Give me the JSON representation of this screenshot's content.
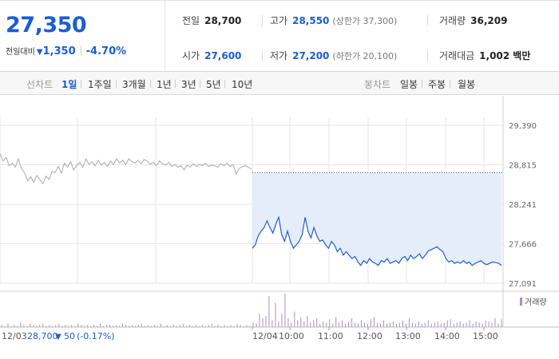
{
  "quote": {
    "price": "27,350",
    "change_label": "전일대비",
    "change_icon": "down-triangle-icon",
    "change_arrow": "▼",
    "change_value": "1,350",
    "change_pct": "-4.70%",
    "stats": {
      "prev_close": {
        "label": "전일",
        "value": "28,700"
      },
      "high": {
        "label": "고가",
        "value": "28,550",
        "sub": "(상한가 37,300)"
      },
      "volume": {
        "label": "거래량",
        "value": "36,209"
      },
      "open": {
        "label": "시가",
        "value": "27,600"
      },
      "low": {
        "label": "저가",
        "value": "27,200",
        "sub": "(하한가 20,100)"
      },
      "amount": {
        "label": "거래대금",
        "value": "1,002 백만"
      }
    }
  },
  "periodbar": {
    "line_label": "선차트",
    "line_options": [
      "1일",
      "1주일",
      "3개월",
      "1년",
      "3년",
      "5년",
      "10년"
    ],
    "line_active": "1일",
    "candle_label": "봉차트",
    "candle_options": [
      "일봉",
      "주봉",
      "월봉"
    ]
  },
  "colors": {
    "up_accent": "#1a5dd6",
    "line": "#1d5fd4",
    "area_fill": "#e5ecfa",
    "volume_bar": "#a98fc7",
    "grid": "#e6e6e6"
  },
  "chart_data": {
    "type": "line",
    "title": "",
    "ylabel": "",
    "xlabel": "",
    "ylim": [
      27091,
      29390
    ],
    "y_ticks": [
      "29,390",
      "28,815",
      "28,241",
      "27,666",
      "27,091"
    ],
    "y_tick_values": [
      29390,
      28815,
      28241,
      27666,
      27091
    ],
    "x_tick_labels": [
      "12/03",
      "12/04",
      "10:00",
      "11:00",
      "12:00",
      "13:00",
      "14:00",
      "15:00"
    ],
    "reference": {
      "label": "전일",
      "value": 28700
    },
    "series": [
      {
        "name": "12/03",
        "color": "#aaaaaa",
        "values": [
          28980,
          28870,
          28920,
          28800,
          28840,
          28780,
          28900,
          28760,
          28700,
          28580,
          28640,
          28560,
          28660,
          28600,
          28540,
          28650,
          28600,
          28720,
          28700,
          28790,
          28690,
          28840,
          28780,
          28860,
          28740,
          28800,
          28850,
          28780,
          28900,
          28820,
          28860,
          28800,
          28880,
          28810,
          28850,
          28790,
          28870,
          28820,
          28900,
          28840,
          28880,
          28820,
          28900,
          28860,
          28840,
          28880,
          28830,
          28890,
          28870,
          28820,
          28850,
          28800,
          28870,
          28830,
          28810,
          28850,
          28790,
          28820,
          28780,
          28800,
          28740,
          28810,
          28780,
          28830,
          28790,
          28820,
          28800,
          28840,
          28790,
          28810,
          28800,
          28780,
          28830,
          28800,
          28840,
          28790,
          28820,
          28680,
          28760,
          28790,
          28800,
          28780,
          28750
        ]
      },
      {
        "name": "12/04",
        "color": "#1d5fd4",
        "values": [
          27600,
          27650,
          27780,
          27850,
          27900,
          28000,
          27900,
          27820,
          27950,
          28050,
          27800,
          27700,
          27850,
          27700,
          27600,
          27650,
          27700,
          27800,
          28050,
          27850,
          27750,
          27900,
          27780,
          27700,
          27720,
          27650,
          27600,
          27700,
          27650,
          27550,
          27600,
          27500,
          27550,
          27500,
          27450,
          27480,
          27400,
          27350,
          27420,
          27380,
          27450,
          27400,
          27380,
          27350,
          27420,
          27400,
          27450,
          27380,
          27400,
          27420,
          27380,
          27450,
          27480,
          27420,
          27500,
          27450,
          27480,
          27520,
          27450,
          27500,
          27560,
          27580,
          27600,
          27620,
          27580,
          27550,
          27450,
          27400,
          27420,
          27380,
          27400,
          27380,
          27420,
          27380,
          27400,
          27350,
          27380,
          27400,
          27420,
          27380,
          27360,
          27380,
          27400,
          27390,
          27380,
          27350
        ]
      }
    ],
    "volume": {
      "label": "거래량",
      "legend_icon": "volume-legend-swatch",
      "values": [
        2,
        1,
        3,
        1,
        2,
        1,
        4,
        2,
        1,
        3,
        2,
        1,
        2,
        3,
        1,
        2,
        1,
        2,
        3,
        1,
        2,
        1,
        2,
        1,
        3,
        2,
        1,
        2,
        1,
        2,
        1,
        3,
        1,
        2,
        2,
        1,
        2,
        1,
        3,
        2,
        1,
        2,
        1,
        2,
        3,
        1,
        2,
        1,
        2,
        1,
        3,
        1,
        2,
        1,
        2,
        1,
        2,
        3,
        1,
        2,
        1,
        2,
        1,
        2,
        1,
        2,
        3,
        1,
        2,
        1,
        2,
        1,
        2,
        1,
        3,
        2,
        1,
        2,
        1,
        4,
        3,
        12,
        8,
        10,
        28,
        6,
        22,
        5,
        12,
        30,
        8,
        4,
        14,
        6,
        9,
        5,
        10,
        4,
        6,
        8,
        3,
        5,
        4,
        7,
        3,
        9,
        4,
        6,
        3,
        5,
        8,
        4,
        3,
        6,
        4,
        3,
        7,
        9,
        4,
        3,
        6,
        3,
        4,
        5,
        3,
        4,
        6,
        3,
        8,
        4,
        3,
        5,
        3,
        4,
        6,
        3,
        4,
        5,
        3,
        4,
        6,
        7,
        3,
        4,
        5,
        3,
        4,
        6,
        3,
        5,
        4,
        3,
        6,
        5,
        4,
        8,
        3,
        7
      ]
    },
    "footer": {
      "date": "12/03",
      "price": "28,700",
      "arrow": "▼",
      "change": "50",
      "pct": "(-0.17%)"
    }
  }
}
